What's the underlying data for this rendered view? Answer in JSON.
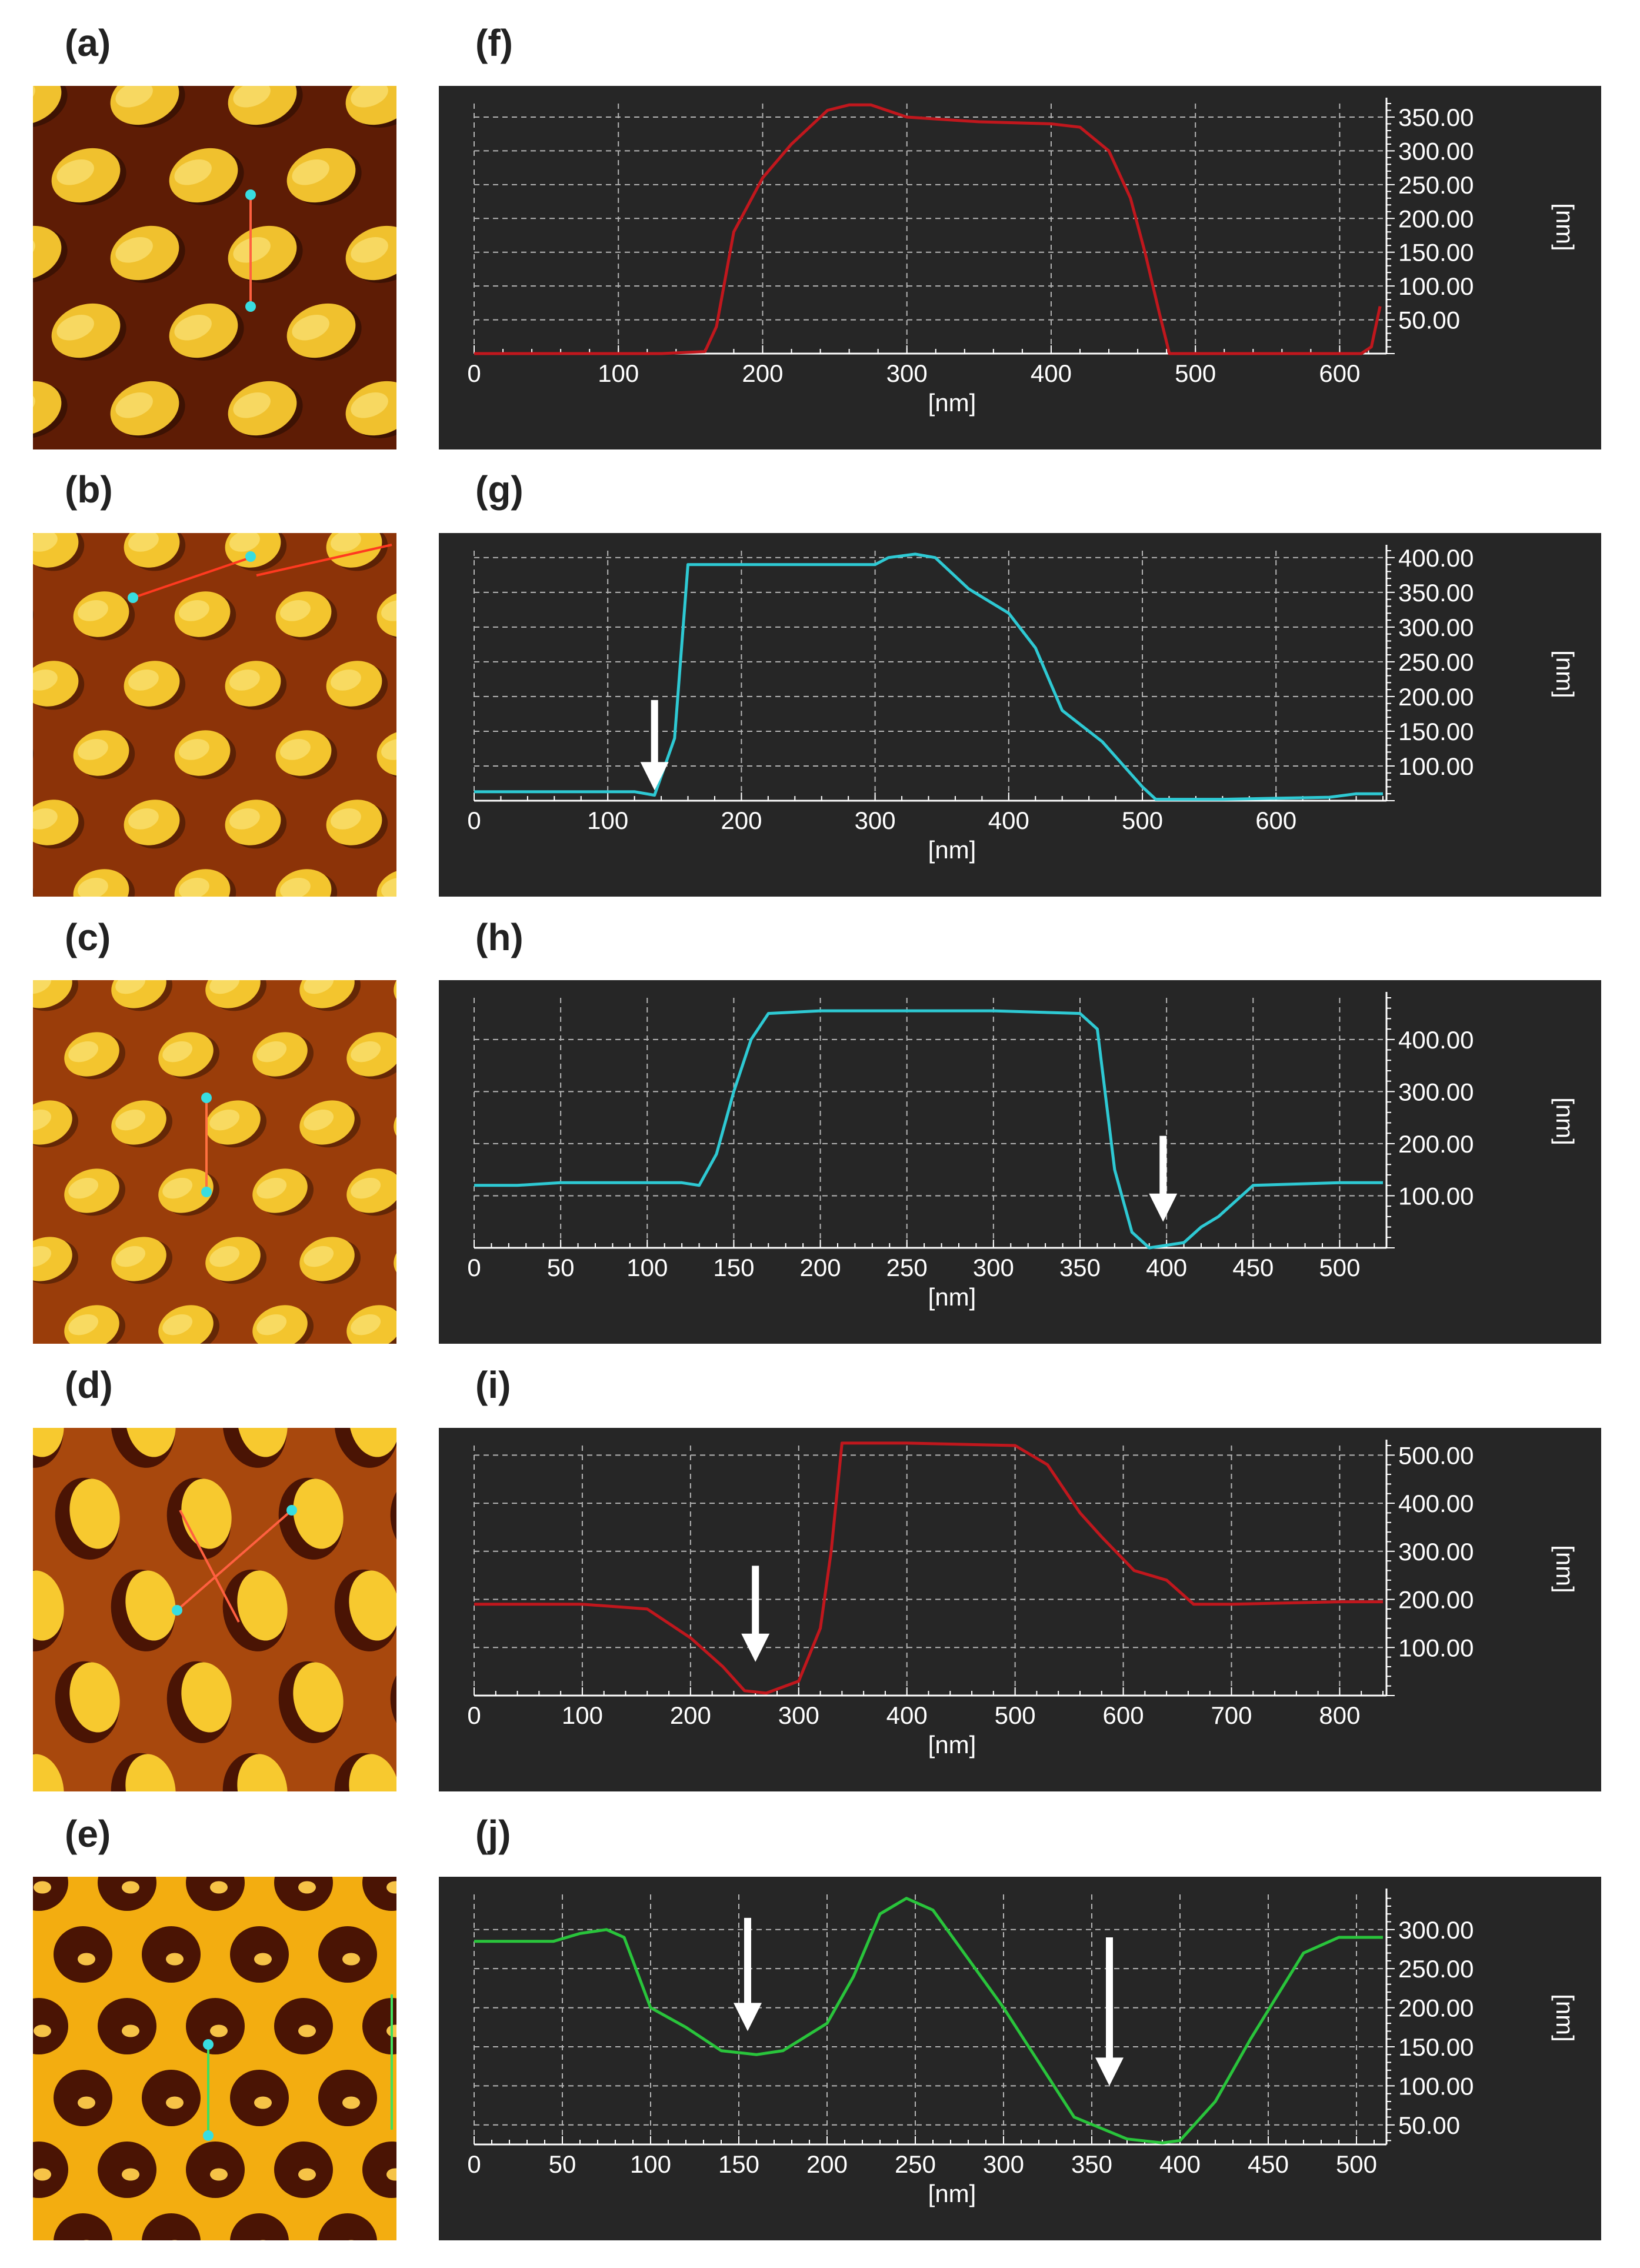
{
  "panel_labels": [
    "(a)",
    "(b)",
    "(c)",
    "(d)",
    "(e)",
    "(f)",
    "(g)",
    "(h)",
    "(i)",
    "(j)"
  ],
  "afm_images": [
    {
      "id": "a",
      "background": "#5e1c05",
      "dot_color": "#f0c12e",
      "line_color": "#ff6040",
      "marker_color": "#38dde0"
    },
    {
      "id": "b",
      "background": "#8c3308",
      "dot_color": "#f3c52e",
      "line_color": "#ff3a20",
      "marker_color": "#38dde0"
    },
    {
      "id": "c",
      "background": "#9a3d0a",
      "dot_color": "#f3c52e",
      "line_color": "#ff7040",
      "marker_color": "#38dde0"
    },
    {
      "id": "d",
      "background": "#a8480d",
      "dot_color": "#f7c92f",
      "line_color": "#ff6040",
      "marker_color": "#38dde0"
    },
    {
      "id": "e",
      "background": "#f3ad10",
      "dot_color": "#4a1404",
      "line_color": "#3fe060",
      "marker_color": "#38dde0"
    }
  ],
  "chart_data": [
    {
      "id": "f",
      "type": "line",
      "color": "#c0171d",
      "xlabel": "[nm]",
      "ylabel": "[nm]",
      "xlim": [
        0,
        630
      ],
      "ylim": [
        0,
        370
      ],
      "xticks": [
        0,
        100,
        200,
        300,
        400,
        500,
        600
      ],
      "xtick_labels": [
        "0",
        "100",
        "200",
        "300",
        "400",
        "500",
        "600"
      ],
      "yticks": [
        50,
        100,
        150,
        200,
        250,
        300,
        350
      ],
      "ytick_labels": [
        "50.00",
        "100.00",
        "150.00",
        "200.00",
        "250.00",
        "300.00",
        "350.00"
      ],
      "x": [
        0,
        100,
        130,
        160,
        168,
        180,
        200,
        220,
        245,
        260,
        275,
        300,
        350,
        400,
        420,
        440,
        455,
        465,
        475,
        482,
        500,
        600,
        615,
        622,
        628
      ],
      "y": [
        0,
        0,
        0,
        3,
        40,
        180,
        260,
        310,
        360,
        368,
        368,
        350,
        343,
        340,
        335,
        300,
        230,
        150,
        60,
        0,
        0,
        0,
        0,
        10,
        70
      ],
      "arrows": []
    },
    {
      "id": "g",
      "type": "line",
      "color": "#2ec9d3",
      "xlabel": "[nm]",
      "ylabel": "[nm]",
      "xlim": [
        0,
        680
      ],
      "ylim": [
        50,
        410
      ],
      "xticks": [
        0,
        100,
        200,
        300,
        400,
        500,
        600
      ],
      "xtick_labels": [
        "0",
        "100",
        "200",
        "300",
        "400",
        "500",
        "600"
      ],
      "yticks": [
        100,
        150,
        200,
        250,
        300,
        350,
        400
      ],
      "ytick_labels": [
        "100.00",
        "150.00",
        "200.00",
        "250.00",
        "300.00",
        "350.00",
        "400.00"
      ],
      "x": [
        0,
        120,
        135,
        150,
        160,
        200,
        300,
        310,
        330,
        345,
        370,
        400,
        420,
        440,
        470,
        500,
        510,
        560,
        640,
        660,
        680
      ],
      "y": [
        63,
        63,
        58,
        140,
        390,
        390,
        390,
        400,
        405,
        400,
        355,
        320,
        270,
        180,
        135,
        70,
        52,
        52,
        55,
        60,
        60
      ],
      "arrows": [
        {
          "x": 135,
          "y_top": 195,
          "y_bottom": 65
        }
      ]
    },
    {
      "id": "h",
      "type": "line",
      "color": "#2ec9d3",
      "xlabel": "[nm]",
      "ylabel": "[nm]",
      "xlim": [
        0,
        525
      ],
      "ylim": [
        0,
        480
      ],
      "xticks": [
        0,
        50,
        100,
        150,
        200,
        250,
        300,
        350,
        400,
        450,
        500
      ],
      "xtick_labels": [
        "0",
        "50",
        "100",
        "150",
        "200",
        "250",
        "300",
        "350",
        "400",
        "450",
        "500"
      ],
      "yticks": [
        100,
        200,
        300,
        400
      ],
      "ytick_labels": [
        "100.00",
        "200.00",
        "300.00",
        "400.00"
      ],
      "x": [
        0,
        25,
        50,
        120,
        130,
        140,
        150,
        160,
        170,
        200,
        250,
        300,
        350,
        360,
        370,
        380,
        390,
        410,
        420,
        430,
        440,
        450,
        500,
        525
      ],
      "y": [
        120,
        120,
        125,
        125,
        120,
        180,
        300,
        400,
        450,
        455,
        455,
        455,
        450,
        420,
        150,
        30,
        0,
        10,
        40,
        60,
        90,
        120,
        125,
        125
      ],
      "arrows": [
        {
          "x": 398,
          "y_top": 215,
          "y_bottom": 50
        }
      ]
    },
    {
      "id": "i",
      "type": "line",
      "color": "#c0171d",
      "xlabel": "[nm]",
      "ylabel": "[nm]",
      "xlim": [
        0,
        840
      ],
      "ylim": [
        0,
        520
      ],
      "xticks": [
        0,
        100,
        200,
        300,
        400,
        500,
        600,
        700,
        800
      ],
      "xtick_labels": [
        "0",
        "100",
        "200",
        "300",
        "400",
        "500",
        "600",
        "700",
        "800"
      ],
      "yticks": [
        100,
        200,
        300,
        400,
        500
      ],
      "ytick_labels": [
        "100.00",
        "200.00",
        "300.00",
        "400.00",
        "500.00"
      ],
      "x": [
        0,
        100,
        160,
        200,
        230,
        250,
        270,
        300,
        320,
        330,
        340,
        400,
        500,
        530,
        560,
        580,
        610,
        640,
        665,
        700,
        800,
        840
      ],
      "y": [
        190,
        190,
        180,
        120,
        60,
        10,
        5,
        30,
        140,
        300,
        525,
        525,
        520,
        480,
        380,
        330,
        260,
        240,
        190,
        190,
        195,
        195
      ],
      "arrows": [
        {
          "x": 260,
          "y_top": 270,
          "y_bottom": 70
        }
      ]
    },
    {
      "id": "j",
      "type": "line",
      "color": "#29c43b",
      "xlabel": "[nm]",
      "ylabel": "[nm]",
      "xlim": [
        0,
        515
      ],
      "ylim": [
        25,
        345
      ],
      "xticks": [
        0,
        50,
        100,
        150,
        200,
        250,
        300,
        350,
        400,
        450,
        500
      ],
      "xtick_labels": [
        "0",
        "50",
        "100",
        "150",
        "200",
        "250",
        "300",
        "350",
        "400",
        "450",
        "500"
      ],
      "yticks": [
        50,
        100,
        150,
        200,
        250,
        300
      ],
      "ytick_labels": [
        "50.00",
        "100.00",
        "150.00",
        "200.00",
        "250.00",
        "300.00"
      ],
      "x": [
        0,
        45,
        60,
        75,
        85,
        100,
        120,
        140,
        160,
        175,
        200,
        215,
        230,
        245,
        260,
        300,
        340,
        370,
        390,
        400,
        420,
        440,
        470,
        490,
        515
      ],
      "y": [
        285,
        285,
        295,
        300,
        290,
        200,
        175,
        145,
        140,
        145,
        180,
        240,
        320,
        340,
        325,
        200,
        60,
        32,
        27,
        30,
        80,
        160,
        270,
        290,
        290
      ],
      "arrows": [
        {
          "x": 155,
          "y_top": 315,
          "y_bottom": 170
        },
        {
          "x": 360,
          "y_top": 290,
          "y_bottom": 100
        }
      ]
    }
  ]
}
